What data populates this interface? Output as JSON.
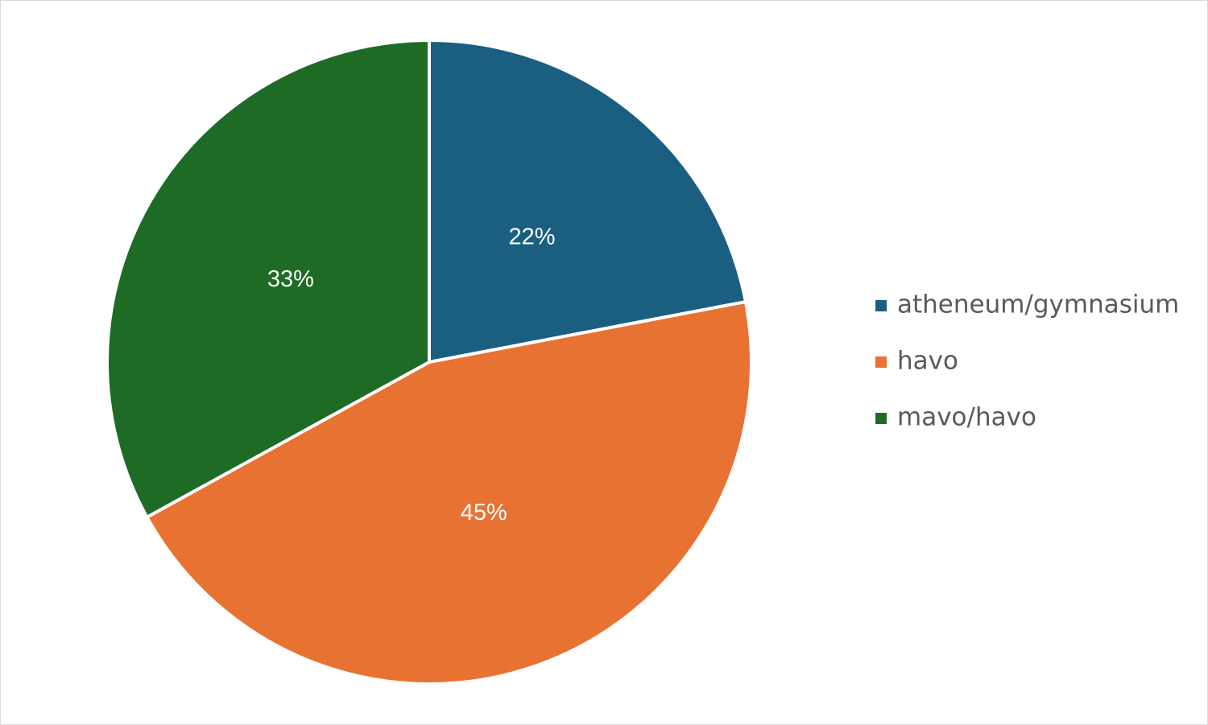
{
  "chart_data": {
    "type": "pie",
    "categories": [
      "atheneum/gymnasium",
      "havo",
      "mavo/havo"
    ],
    "values": [
      22,
      45,
      33
    ],
    "value_labels": [
      "22%",
      "45%",
      "33%"
    ],
    "colors": [
      "#1a5f80",
      "#e87232",
      "#1e6b25"
    ],
    "legend": "right"
  }
}
